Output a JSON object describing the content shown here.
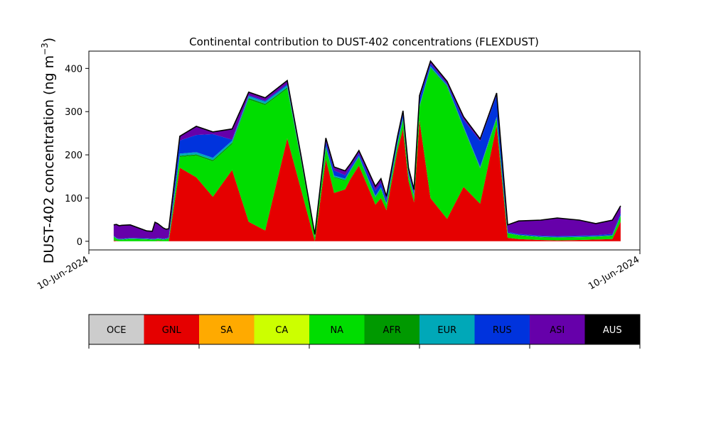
{
  "chart_data": {
    "type": "area",
    "stacked": true,
    "title": "Continental contribution to DUST-402 concentrations (FLEXDUST)",
    "ylabel": "DUST-402 concentration (ng m",
    "ylabel_sup": "−3",
    "ylabel_close": ")",
    "xlabel": "",
    "x_tick_labels": [
      "10-Jun-2024",
      "10-Jun-2024"
    ],
    "y_ticks": [
      0,
      100,
      200,
      300,
      400
    ],
    "ylim": [
      -20,
      440
    ],
    "xlim": [
      0,
      100
    ],
    "grid": false,
    "x": [
      4.5,
      5,
      5.5,
      6,
      7.5,
      10.5,
      11.5,
      12,
      12.5,
      13.5,
      14,
      14.5,
      16.5,
      19.5,
      22.5,
      26,
      29,
      32,
      36,
      38.5,
      41,
      43,
      44.5,
      46.5,
      47.5,
      49,
      52,
      53,
      54,
      56,
      57,
      58,
      59,
      60,
      62,
      65,
      68,
      71,
      74,
      76,
      78,
      82,
      85,
      89,
      92,
      95,
      96.5
    ],
    "series": [
      {
        "name": "OCE",
        "color": "#cccccc",
        "values": [
          0,
          0,
          0,
          0,
          0,
          0,
          0,
          0,
          0,
          0,
          0,
          0,
          0,
          0,
          0,
          0,
          0,
          0,
          0,
          0,
          0,
          0,
          0,
          0,
          0,
          0,
          0,
          0,
          0,
          0,
          0,
          0,
          0,
          0,
          0,
          0,
          0,
          0,
          0,
          0,
          0,
          0,
          0,
          0,
          0,
          0,
          0
        ]
      },
      {
        "name": "GNL",
        "color": "#e50000",
        "values": [
          2,
          1,
          0,
          0,
          0,
          0,
          0,
          0,
          1,
          0,
          0,
          0,
          170,
          148,
          103,
          165,
          45,
          25,
          238,
          120,
          0,
          190,
          112,
          120,
          145,
          175,
          85,
          100,
          72,
          210,
          260,
          140,
          90,
          280,
          100,
          52,
          126,
          87,
          268,
          8,
          5,
          3,
          2,
          3,
          4,
          5,
          45
        ]
      },
      {
        "name": "SA",
        "color": "#ffaa00",
        "values": [
          0,
          0,
          0,
          0,
          0,
          0,
          0,
          0,
          0,
          0,
          0,
          0,
          0,
          0,
          0,
          0,
          0,
          0,
          0,
          0,
          0,
          0,
          0,
          0,
          0,
          0,
          0,
          0,
          0,
          0,
          0,
          0,
          0,
          0,
          0,
          0,
          0,
          0,
          0,
          0,
          0,
          0,
          0,
          0,
          0,
          0,
          0
        ]
      },
      {
        "name": "CA",
        "color": "#ccff00",
        "values": [
          0,
          0,
          0,
          0,
          0,
          0,
          0,
          0,
          0,
          0,
          0,
          0,
          0,
          0,
          0,
          0,
          0,
          0,
          0,
          0,
          0,
          0,
          0,
          0,
          0,
          0,
          0,
          0,
          0,
          0,
          0,
          0,
          0,
          0,
          0,
          0,
          0,
          0,
          0,
          0,
          0,
          0,
          0,
          0,
          0,
          0,
          0
        ]
      },
      {
        "name": "NA",
        "color": "#00dd00",
        "values": [
          8,
          4,
          3,
          3,
          5,
          4,
          3,
          3,
          4,
          3,
          4,
          6,
          25,
          50,
          82,
          60,
          283,
          290,
          115,
          65,
          10,
          25,
          35,
          20,
          17,
          18,
          15,
          20,
          12,
          12,
          20,
          12,
          12,
          30,
          300,
          305,
          135,
          80,
          15,
          10,
          8,
          6,
          6,
          6,
          6,
          7,
          12
        ]
      },
      {
        "name": "AFR",
        "color": "#009900",
        "values": [
          1,
          1,
          1,
          1,
          1,
          1,
          1,
          1,
          1,
          1,
          1,
          1,
          3,
          3,
          3,
          3,
          3,
          3,
          3,
          2,
          1,
          2,
          2,
          2,
          2,
          2,
          2,
          2,
          2,
          2,
          2,
          2,
          2,
          2,
          2,
          2,
          2,
          2,
          2,
          1,
          1,
          1,
          1,
          1,
          1,
          1,
          2
        ]
      },
      {
        "name": "EUR",
        "color": "#00a8b8",
        "values": [
          1,
          1,
          1,
          1,
          1,
          1,
          1,
          1,
          1,
          1,
          1,
          1,
          5,
          5,
          5,
          5,
          5,
          5,
          5,
          2,
          1,
          3,
          3,
          3,
          3,
          3,
          3,
          3,
          2,
          3,
          3,
          3,
          3,
          3,
          3,
          3,
          3,
          3,
          3,
          1,
          1,
          1,
          1,
          1,
          1,
          1,
          2
        ]
      },
      {
        "name": "RUS",
        "color": "#0033dd",
        "values": [
          1,
          1,
          1,
          1,
          1,
          1,
          1,
          1,
          1,
          1,
          1,
          1,
          30,
          40,
          55,
          2,
          2,
          2,
          3,
          2,
          1,
          10,
          12,
          8,
          5,
          5,
          12,
          10,
          8,
          8,
          10,
          6,
          6,
          15,
          6,
          2,
          15,
          60,
          50,
          2,
          2,
          2,
          2,
          2,
          2,
          3,
          5
        ]
      },
      {
        "name": "ASI",
        "color": "#6600aa",
        "values": [
          25,
          31,
          30,
          31,
          30,
          17,
          17,
          38,
          33,
          25,
          21,
          20,
          10,
          20,
          5,
          25,
          7,
          7,
          8,
          7,
          3,
          9,
          8,
          10,
          8,
          7,
          10,
          10,
          8,
          7,
          7,
          7,
          7,
          7,
          6,
          6,
          7,
          5,
          5,
          16,
          30,
          36,
          42,
          36,
          27,
          32,
          16
        ]
      },
      {
        "name": "AUS",
        "color": "#000000",
        "values": [
          0,
          0,
          0,
          0,
          0,
          0,
          0,
          0,
          0,
          0,
          0,
          0,
          0,
          0,
          0,
          0,
          0,
          0,
          0,
          0,
          0,
          0,
          0,
          0,
          0,
          0,
          0,
          0,
          0,
          0,
          0,
          0,
          0,
          0,
          0,
          0,
          0,
          0,
          0,
          0,
          0,
          0,
          0,
          0,
          0,
          0,
          0
        ]
      }
    ],
    "legend": {
      "labels": [
        "OCE",
        "GNL",
        "SA",
        "CA",
        "NA",
        "AFR",
        "EUR",
        "RUS",
        "ASI",
        "AUS"
      ],
      "placement": "bottom",
      "text_colors": [
        "#000000",
        "#000000",
        "#000000",
        "#000000",
        "#000000",
        "#000000",
        "#000000",
        "#000000",
        "#000000",
        "#ffffff"
      ]
    }
  }
}
